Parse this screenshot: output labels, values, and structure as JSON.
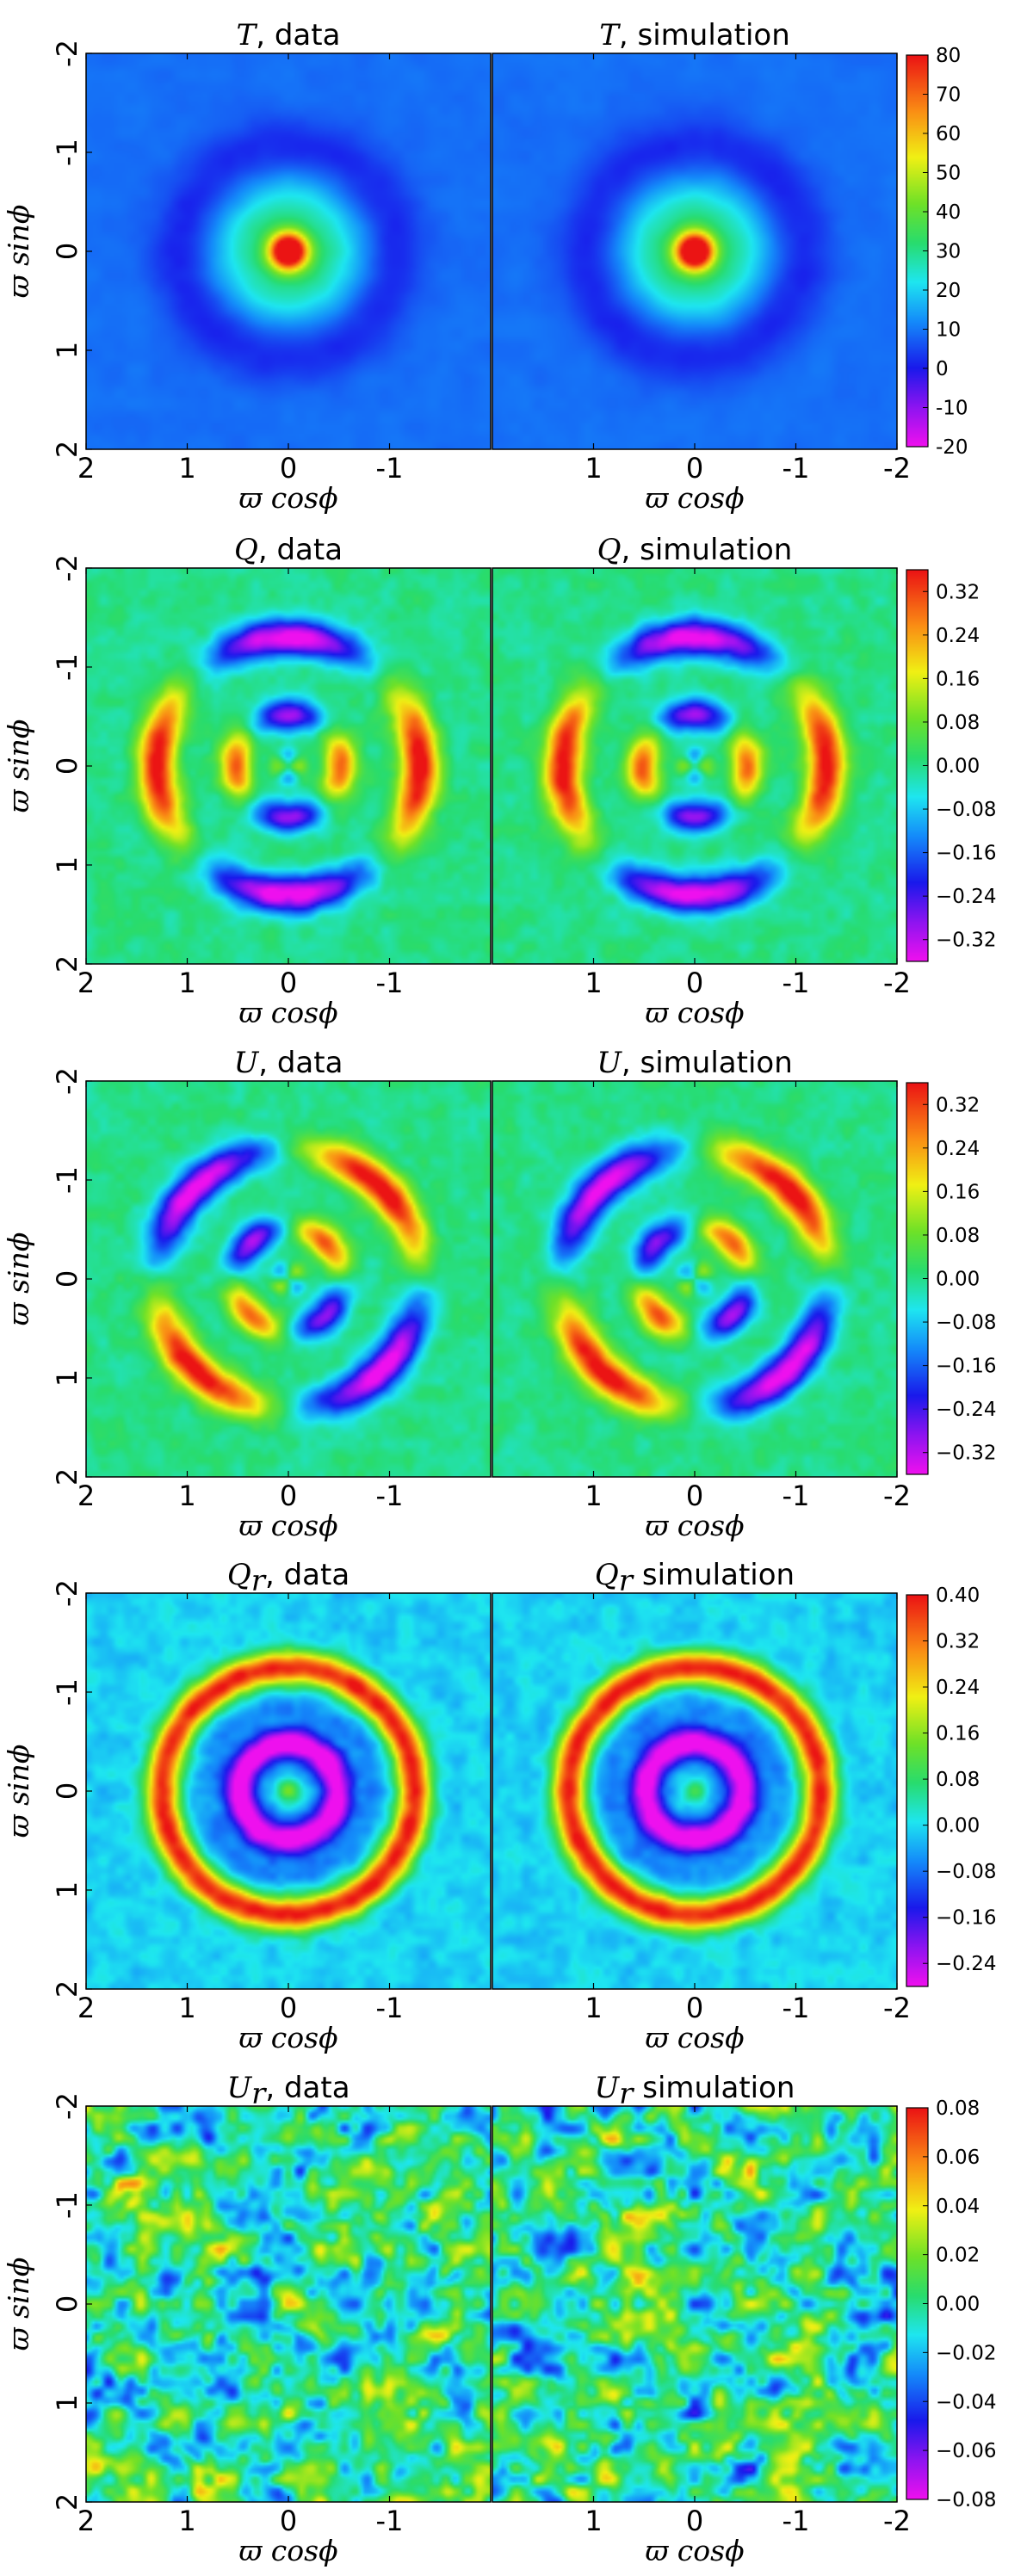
{
  "chart_data": [
    {
      "type": "heatmap",
      "panels": [
        {
          "title_var": "T",
          "title_suffix": ", data"
        },
        {
          "title_var": "T",
          "title_suffix": ", simulation"
        }
      ],
      "pattern": "temperature",
      "xlabel": "ϖ cosϕ",
      "ylabel": "ϖ sinϕ",
      "x_ticks": [
        "2",
        "1",
        "0",
        "-1"
      ],
      "x_ticks_right": [
        "1",
        "0",
        "-1",
        "-2"
      ],
      "y_ticks": [
        "-2",
        "-1",
        "0",
        "1",
        "2"
      ],
      "xlim": [
        2,
        -2
      ],
      "ylim": [
        -2,
        2
      ],
      "colorbar": {
        "min": -20,
        "max": 80,
        "ticks": [
          "80",
          "70",
          "60",
          "50",
          "40",
          "30",
          "20",
          "10",
          "0",
          "-10",
          "-20"
        ]
      }
    },
    {
      "type": "heatmap",
      "panels": [
        {
          "title_var": "Q",
          "title_suffix": ", data"
        },
        {
          "title_var": "Q",
          "title_suffix": ", simulation"
        }
      ],
      "pattern": "Q",
      "xlabel": "ϖ cosϕ",
      "ylabel": "ϖ sinϕ",
      "x_ticks": [
        "2",
        "1",
        "0",
        "-1"
      ],
      "x_ticks_right": [
        "1",
        "0",
        "-1",
        "-2"
      ],
      "y_ticks": [
        "-2",
        "-1",
        "0",
        "1",
        "2"
      ],
      "xlim": [
        2,
        -2
      ],
      "ylim": [
        -2,
        2
      ],
      "colorbar": {
        "min": -0.36,
        "max": 0.36,
        "ticks": [
          "0.32",
          "0.24",
          "0.16",
          "0.08",
          "0.00",
          "−0.08",
          "−0.16",
          "−0.24",
          "−0.32"
        ]
      }
    },
    {
      "type": "heatmap",
      "panels": [
        {
          "title_var": "U",
          "title_suffix": ", data"
        },
        {
          "title_var": "U",
          "title_suffix": ", simulation"
        }
      ],
      "pattern": "U",
      "xlabel": "ϖ cosϕ",
      "ylabel": "ϖ sinϕ",
      "x_ticks": [
        "2",
        "1",
        "0",
        "-1"
      ],
      "x_ticks_right": [
        "1",
        "0",
        "-1",
        "-2"
      ],
      "y_ticks": [
        "-2",
        "-1",
        "0",
        "1",
        "2"
      ],
      "xlim": [
        2,
        -2
      ],
      "ylim": [
        -2,
        2
      ],
      "colorbar": {
        "min": -0.36,
        "max": 0.36,
        "ticks": [
          "0.32",
          "0.24",
          "0.16",
          "0.08",
          "0.00",
          "−0.08",
          "−0.16",
          "−0.24",
          "−0.32"
        ]
      }
    },
    {
      "type": "heatmap",
      "panels": [
        {
          "title_var": "Q",
          "title_sub": "r",
          "title_suffix": ", data"
        },
        {
          "title_var": "Q",
          "title_sub": "r",
          "title_suffix": " simulation"
        }
      ],
      "pattern": "Qr",
      "xlabel": "ϖ cosϕ",
      "ylabel": "ϖ sinϕ",
      "x_ticks": [
        "2",
        "1",
        "0",
        "-1"
      ],
      "x_ticks_right": [
        "1",
        "0",
        "-1",
        "-2"
      ],
      "y_ticks": [
        "-2",
        "-1",
        "0",
        "1",
        "2"
      ],
      "xlim": [
        2,
        -2
      ],
      "ylim": [
        -2,
        2
      ],
      "colorbar": {
        "min": -0.28,
        "max": 0.4,
        "ticks": [
          "0.40",
          "0.32",
          "0.24",
          "0.16",
          "0.08",
          "0.00",
          "−0.08",
          "−0.16",
          "−0.24"
        ]
      }
    },
    {
      "type": "heatmap",
      "panels": [
        {
          "title_var": "U",
          "title_sub": "r",
          "title_suffix": ", data"
        },
        {
          "title_var": "U",
          "title_sub": "r",
          "title_suffix": " simulation"
        }
      ],
      "pattern": "Ur",
      "xlabel": "ϖ cosϕ",
      "ylabel": "ϖ sinϕ",
      "x_ticks": [
        "2",
        "1",
        "0",
        "-1"
      ],
      "x_ticks_right": [
        "1",
        "0",
        "-1",
        "-2"
      ],
      "y_ticks": [
        "-2",
        "-1",
        "0",
        "1",
        "2"
      ],
      "xlim": [
        2,
        -2
      ],
      "ylim": [
        -2,
        2
      ],
      "colorbar": {
        "min": -0.08,
        "max": 0.08,
        "ticks": [
          "0.08",
          "0.06",
          "0.04",
          "0.02",
          "0.00",
          "−0.02",
          "−0.04",
          "−0.06",
          "−0.08"
        ]
      }
    }
  ]
}
